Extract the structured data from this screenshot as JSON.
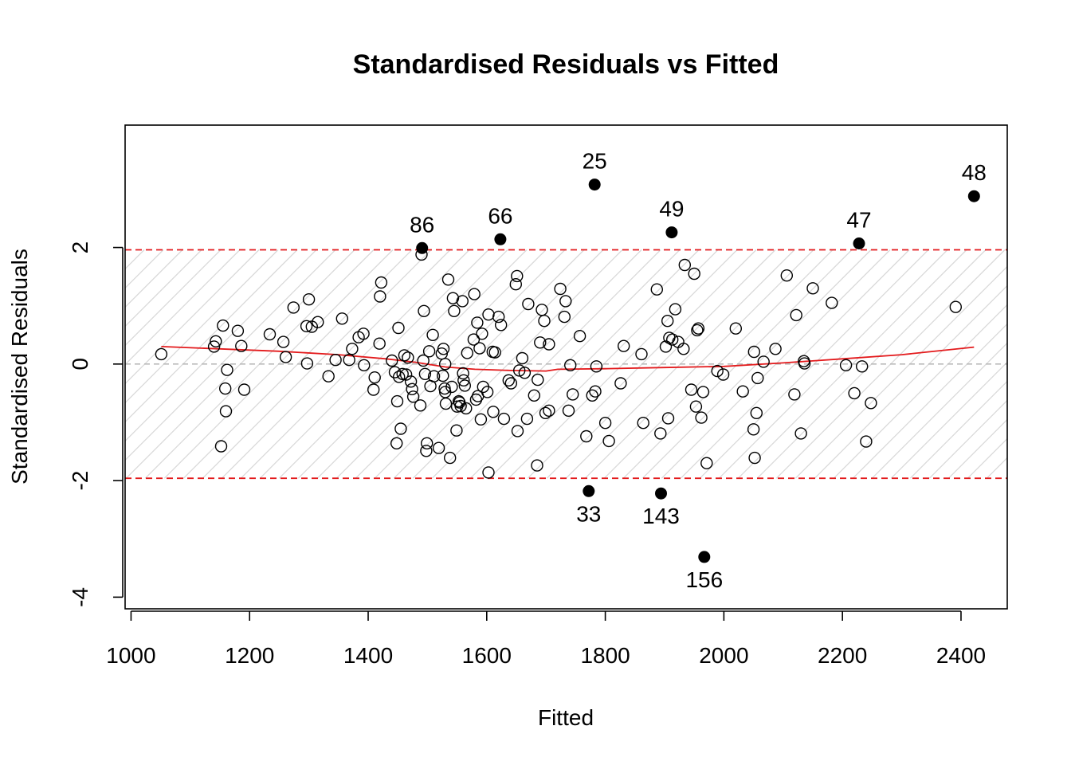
{
  "chart_data": {
    "type": "scatter",
    "title": "Standardised Residuals vs Fitted",
    "xlabel": "Fitted",
    "ylabel": "Standardised Residuals",
    "xlim": [
      990,
      2478
    ],
    "ylim": [
      -4.2,
      4.1
    ],
    "x_ticks": [
      1000,
      1200,
      1400,
      1600,
      1800,
      2000,
      2200,
      2400
    ],
    "y_ticks": [
      -4,
      -2,
      0,
      2
    ],
    "band": [
      -1.96,
      1.96
    ],
    "colors": {
      "reference": "#e31a1c",
      "smooth": "#e31a1c",
      "zero": "#bbbbbb",
      "hatch": "#d9d9d9",
      "points": "#000000"
    },
    "outliers": [
      {
        "label": "25",
        "x": 1782,
        "y": 3.08
      },
      {
        "label": "48",
        "x": 2422,
        "y": 2.88
      },
      {
        "label": "49",
        "x": 1912,
        "y": 2.26
      },
      {
        "label": "66",
        "x": 1623,
        "y": 2.14
      },
      {
        "label": "47",
        "x": 2228,
        "y": 2.07
      },
      {
        "label": "86",
        "x": 1491,
        "y": 1.99
      },
      {
        "label": "33",
        "x": 1772,
        "y": -2.18
      },
      {
        "label": "143",
        "x": 1894,
        "y": -2.22
      },
      {
        "label": "156",
        "x": 1967,
        "y": -3.31
      }
    ],
    "points": [
      [
        1051,
        0.17
      ],
      [
        1140,
        0.3
      ],
      [
        1143,
        0.39
      ],
      [
        1152,
        -1.41
      ],
      [
        1155,
        0.66
      ],
      [
        1159,
        -0.42
      ],
      [
        1160,
        -0.81
      ],
      [
        1162,
        -0.1
      ],
      [
        1180,
        0.57
      ],
      [
        1186,
        0.31
      ],
      [
        1191,
        -0.44
      ],
      [
        1234,
        0.51
      ],
      [
        1257,
        0.38
      ],
      [
        1261,
        0.12
      ],
      [
        1274,
        0.97
      ],
      [
        1296,
        0.65
      ],
      [
        1297,
        0.01
      ],
      [
        1300,
        1.11
      ],
      [
        1305,
        0.64
      ],
      [
        1315,
        0.72
      ],
      [
        1333,
        -0.21
      ],
      [
        1345,
        0.07
      ],
      [
        1356,
        0.78
      ],
      [
        1368,
        0.07
      ],
      [
        1373,
        0.26
      ],
      [
        1384,
        0.46
      ],
      [
        1392,
        0.52
      ],
      [
        1393,
        -0.02
      ],
      [
        1409,
        -0.44
      ],
      [
        1411,
        -0.23
      ],
      [
        1419,
        0.35
      ],
      [
        1420,
        1.16
      ],
      [
        1422,
        1.4
      ],
      [
        1440,
        0.06
      ],
      [
        1445,
        -0.14
      ],
      [
        1448,
        -1.36
      ],
      [
        1449,
        -0.64
      ],
      [
        1451,
        0.62
      ],
      [
        1452,
        -0.22
      ],
      [
        1455,
        -1.11
      ],
      [
        1458,
        -0.17
      ],
      [
        1461,
        0.15
      ],
      [
        1464,
        -0.18
      ],
      [
        1467,
        0.11
      ],
      [
        1472,
        -0.3
      ],
      [
        1474,
        -0.43
      ],
      [
        1476,
        -0.56
      ],
      [
        1488,
        -0.71
      ],
      [
        1490,
        1.88
      ],
      [
        1493,
        0.06
      ],
      [
        1494,
        0.91
      ],
      [
        1496,
        -0.17
      ],
      [
        1498,
        -1.49
      ],
      [
        1499,
        -1.36
      ],
      [
        1503,
        0.22
      ],
      [
        1505,
        -0.38
      ],
      [
        1509,
        0.5
      ],
      [
        1511,
        -0.21
      ],
      [
        1519,
        -1.44
      ],
      [
        1524,
        0.18
      ],
      [
        1526,
        -0.2
      ],
      [
        1527,
        0.26
      ],
      [
        1529,
        -0.42
      ],
      [
        1530,
        -0.48
      ],
      [
        1530,
        0.0
      ],
      [
        1531,
        -0.68
      ],
      [
        1535,
        1.45
      ],
      [
        1538,
        -1.61
      ],
      [
        1541,
        -0.39
      ],
      [
        1543,
        1.13
      ],
      [
        1545,
        0.91
      ],
      [
        1549,
        -1.14
      ],
      [
        1550,
        -0.73
      ],
      [
        1553,
        -0.64
      ],
      [
        1554,
        -0.66
      ],
      [
        1556,
        -0.72
      ],
      [
        1559,
        1.08
      ],
      [
        1560,
        -0.16
      ],
      [
        1561,
        -0.28
      ],
      [
        1563,
        -0.37
      ],
      [
        1565,
        -0.76
      ],
      [
        1567,
        0.19
      ],
      [
        1578,
        0.42
      ],
      [
        1579,
        1.2
      ],
      [
        1582,
        -0.61
      ],
      [
        1584,
        0.71
      ],
      [
        1585,
        -0.55
      ],
      [
        1588,
        0.27
      ],
      [
        1590,
        -0.95
      ],
      [
        1592,
        0.52
      ],
      [
        1594,
        -0.39
      ],
      [
        1601,
        -0.48
      ],
      [
        1603,
        -1.86
      ],
      [
        1603,
        0.85
      ],
      [
        1610,
        0.21
      ],
      [
        1611,
        -0.82
      ],
      [
        1614,
        0.2
      ],
      [
        1620,
        0.81
      ],
      [
        1624,
        0.67
      ],
      [
        1629,
        -0.94
      ],
      [
        1637,
        -0.28
      ],
      [
        1641,
        -0.33
      ],
      [
        1649,
        1.37
      ],
      [
        1651,
        1.51
      ],
      [
        1652,
        -1.15
      ],
      [
        1655,
        -0.11
      ],
      [
        1660,
        0.1
      ],
      [
        1664,
        -0.15
      ],
      [
        1668,
        -0.94
      ],
      [
        1670,
        1.03
      ],
      [
        1680,
        -0.54
      ],
      [
        1685,
        -1.74
      ],
      [
        1686,
        -0.27
      ],
      [
        1690,
        0.37
      ],
      [
        1693,
        0.93
      ],
      [
        1697,
        0.74
      ],
      [
        1699,
        -0.84
      ],
      [
        1705,
        0.34
      ],
      [
        1705,
        -0.8
      ],
      [
        1724,
        1.29
      ],
      [
        1731,
        0.81
      ],
      [
        1733,
        1.08
      ],
      [
        1738,
        -0.8
      ],
      [
        1741,
        -0.02
      ],
      [
        1745,
        -0.52
      ],
      [
        1757,
        0.48
      ],
      [
        1768,
        -1.24
      ],
      [
        1778,
        -0.54
      ],
      [
        1783,
        -0.47
      ],
      [
        1785,
        -0.04
      ],
      [
        1800,
        -1.01
      ],
      [
        1806,
        -1.32
      ],
      [
        1826,
        -0.33
      ],
      [
        1831,
        0.31
      ],
      [
        1861,
        0.17
      ],
      [
        1864,
        -1.01
      ],
      [
        1887,
        1.28
      ],
      [
        1893,
        -1.19
      ],
      [
        1902,
        0.3
      ],
      [
        1905,
        0.74
      ],
      [
        1906,
        -0.93
      ],
      [
        1908,
        0.45
      ],
      [
        1913,
        0.42
      ],
      [
        1918,
        0.94
      ],
      [
        1923,
        0.38
      ],
      [
        1932,
        0.26
      ],
      [
        1934,
        1.7
      ],
      [
        1945,
        -0.44
      ],
      [
        1950,
        1.55
      ],
      [
        1953,
        -0.73
      ],
      [
        1955,
        0.58
      ],
      [
        1957,
        0.61
      ],
      [
        1962,
        -0.92
      ],
      [
        1965,
        -0.48
      ],
      [
        1971,
        -1.7
      ],
      [
        1989,
        -0.12
      ],
      [
        1999,
        -0.18
      ],
      [
        2020,
        0.61
      ],
      [
        2032,
        -0.47
      ],
      [
        2050,
        -1.12
      ],
      [
        2051,
        0.21
      ],
      [
        2052,
        -1.61
      ],
      [
        2055,
        -0.84
      ],
      [
        2057,
        -0.24
      ],
      [
        2067,
        0.04
      ],
      [
        2087,
        0.26
      ],
      [
        2106,
        1.52
      ],
      [
        2119,
        -0.52
      ],
      [
        2122,
        0.84
      ],
      [
        2130,
        -1.19
      ],
      [
        2135,
        0.05
      ],
      [
        2136,
        0.01
      ],
      [
        2150,
        1.3
      ],
      [
        2182,
        1.05
      ],
      [
        2206,
        -0.02
      ],
      [
        2220,
        -0.5
      ],
      [
        2233,
        -0.04
      ],
      [
        2240,
        -1.33
      ],
      [
        2248,
        -0.67
      ],
      [
        2391,
        0.98
      ]
    ],
    "smooth": [
      [
        1051,
        0.3
      ],
      [
        1150,
        0.26
      ],
      [
        1250,
        0.22
      ],
      [
        1350,
        0.16
      ],
      [
        1430,
        0.09
      ],
      [
        1480,
        0.03
      ],
      [
        1530,
        -0.05
      ],
      [
        1580,
        -0.09
      ],
      [
        1640,
        -0.11
      ],
      [
        1700,
        -0.12
      ],
      [
        1720,
        -0.09
      ],
      [
        1800,
        -0.08
      ],
      [
        1900,
        -0.06
      ],
      [
        2000,
        -0.04
      ],
      [
        2100,
        0.02
      ],
      [
        2200,
        0.09
      ],
      [
        2300,
        0.16
      ],
      [
        2422,
        0.29
      ]
    ]
  }
}
